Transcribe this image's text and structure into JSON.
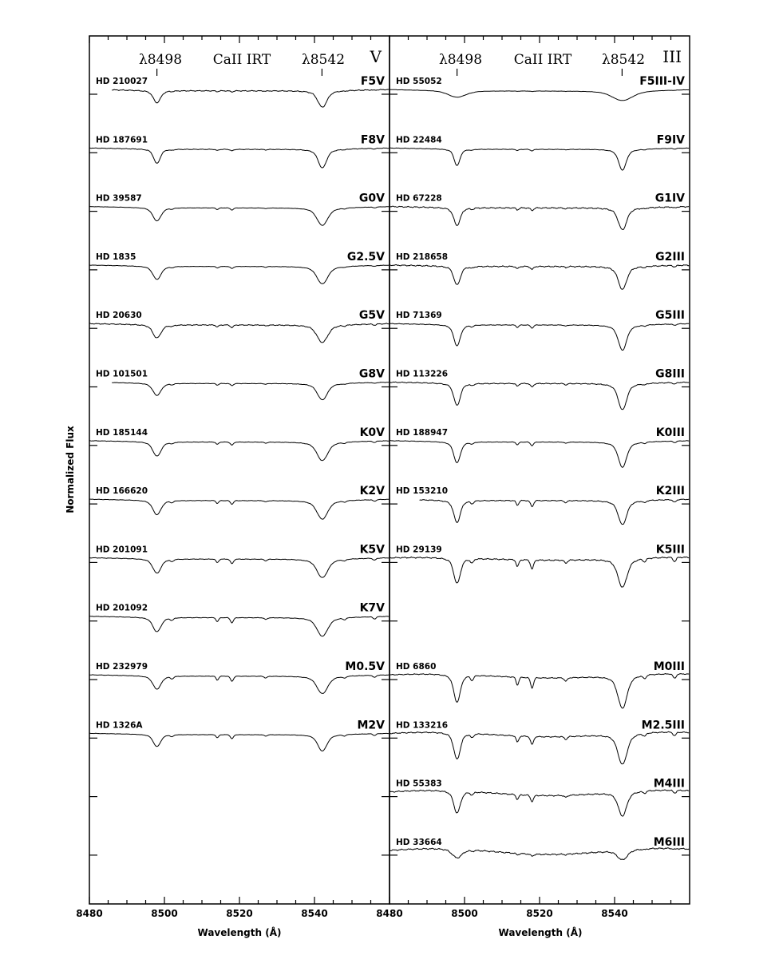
{
  "chart_data": [
    {
      "type": "line",
      "panel": "V",
      "title": "CaII IRT",
      "class_label": "V",
      "line_markers": [
        "λ8498",
        "λ8542"
      ],
      "line_marker_wavelengths": [
        8498,
        8542
      ],
      "xlabel": "Wavelength (Å)",
      "ylabel": "Normalized Flux",
      "xlim": [
        8480,
        8560
      ],
      "xticks": [
        8480,
        8500,
        8520,
        8540
      ],
      "grid": false,
      "series": [
        {
          "star": "HD 210027",
          "sptype": "F5V",
          "xstart": 8486,
          "xend": 8560,
          "noise": 0.6,
          "d8498": 0.55,
          "w8498": 0.9,
          "d8542": 0.75,
          "w8542": 1.1,
          "weak": 0.1,
          "tio": 0
        },
        {
          "star": "HD 187691",
          "sptype": "F8V",
          "xstart": 8480,
          "xend": 8560,
          "noise": 0.4,
          "d8498": 0.65,
          "w8498": 0.8,
          "d8542": 0.85,
          "w8542": 1.0,
          "weak": 0.15,
          "tio": 0
        },
        {
          "star": "HD 39587",
          "sptype": "G0V",
          "xstart": 8480,
          "xend": 8560,
          "noise": 0.2,
          "d8498": 0.6,
          "w8498": 1.0,
          "d8542": 0.8,
          "w8542": 1.3,
          "weak": 0.2,
          "tio": 0
        },
        {
          "star": "HD 1835",
          "sptype": "G2.5V",
          "xstart": 8480,
          "xend": 8560,
          "noise": 0.25,
          "d8498": 0.6,
          "w8498": 1.0,
          "d8542": 0.8,
          "w8542": 1.3,
          "weak": 0.2,
          "tio": 0
        },
        {
          "star": "HD 20630",
          "sptype": "G5V",
          "xstart": 8480,
          "xend": 8560,
          "noise": 0.6,
          "d8498": 0.6,
          "w8498": 1.0,
          "d8542": 0.8,
          "w8542": 1.3,
          "weak": 0.25,
          "tio": 0
        },
        {
          "star": "HD 101501",
          "sptype": "G8V",
          "xstart": 8486,
          "xend": 8560,
          "noise": 0.3,
          "d8498": 0.55,
          "w8498": 1.0,
          "d8542": 0.75,
          "w8542": 1.2,
          "weak": 0.2,
          "tio": 0
        },
        {
          "star": "HD 185144",
          "sptype": "K0V",
          "xstart": 8480,
          "xend": 8560,
          "noise": 0.3,
          "d8498": 0.65,
          "w8498": 1.0,
          "d8542": 0.85,
          "w8542": 1.3,
          "weak": 0.3,
          "tio": 0
        },
        {
          "star": "HD 166620",
          "sptype": "K2V",
          "xstart": 8480,
          "xend": 8560,
          "noise": 0.3,
          "d8498": 0.65,
          "w8498": 1.0,
          "d8542": 0.85,
          "w8542": 1.3,
          "weak": 0.35,
          "tio": 0
        },
        {
          "star": "HD 201091",
          "sptype": "K5V",
          "xstart": 8480,
          "xend": 8560,
          "noise": 0.35,
          "d8498": 0.65,
          "w8498": 1.0,
          "d8542": 0.85,
          "w8542": 1.3,
          "weak": 0.45,
          "tio": 0
        },
        {
          "star": "HD 201092",
          "sptype": "K7V",
          "xstart": 8480,
          "xend": 8560,
          "noise": 0.3,
          "d8498": 0.65,
          "w8498": 1.0,
          "d8542": 0.85,
          "w8542": 1.3,
          "weak": 0.5,
          "tio": 0
        },
        {
          "star": "HD 232979",
          "sptype": "M0.5V",
          "xstart": 8480,
          "xend": 8560,
          "noise": 0.3,
          "d8498": 0.6,
          "w8498": 1.0,
          "d8542": 0.8,
          "w8542": 1.3,
          "weak": 0.5,
          "tio": 0
        },
        {
          "star": "HD 1326A",
          "sptype": "M2V",
          "xstart": 8480,
          "xend": 8560,
          "noise": 0.2,
          "d8498": 0.55,
          "w8498": 0.9,
          "d8542": 0.75,
          "w8542": 1.1,
          "weak": 0.4,
          "tio": 0
        }
      ]
    },
    {
      "type": "line",
      "panel": "III",
      "title": "CaII IRT",
      "class_label": "III",
      "line_markers": [
        "λ8498",
        "λ8542"
      ],
      "line_marker_wavelengths": [
        8498,
        8542
      ],
      "xlabel": "Wavelength (Å)",
      "xlim": [
        8480,
        8560
      ],
      "xticks": [
        8480,
        8500,
        8520,
        8540
      ],
      "grid": false,
      "series": [
        {
          "star": "HD 55052",
          "sptype": "F5III-IV",
          "xstart": 8480,
          "xend": 8560,
          "noise": 0.15,
          "d8498": 0.3,
          "w8498": 2.2,
          "d8542": 0.45,
          "w8542": 2.5,
          "weak": 0.05,
          "tio": 0
        },
        {
          "star": "HD 22484",
          "sptype": "F9IV",
          "xstart": 8480,
          "xend": 8560,
          "noise": 0.3,
          "d8498": 0.75,
          "w8498": 0.7,
          "d8542": 0.95,
          "w8542": 0.9,
          "weak": 0.15,
          "tio": 0
        },
        {
          "star": "HD 67228",
          "sptype": "G1IV",
          "xstart": 8480,
          "xend": 8560,
          "noise": 0.8,
          "d8498": 0.8,
          "w8498": 0.8,
          "d8542": 1.0,
          "w8542": 1.0,
          "weak": 0.25,
          "tio": 0
        },
        {
          "star": "HD 218658",
          "sptype": "G2III",
          "xstart": 8480,
          "xend": 8560,
          "noise": 0.8,
          "d8498": 0.85,
          "w8498": 0.8,
          "d8542": 1.05,
          "w8542": 1.0,
          "weak": 0.3,
          "tio": 0
        },
        {
          "star": "HD 71369",
          "sptype": "G5III",
          "xstart": 8480,
          "xend": 8560,
          "noise": 0.4,
          "d8498": 0.95,
          "w8498": 0.8,
          "d8542": 1.15,
          "w8542": 1.0,
          "weak": 0.3,
          "tio": 0
        },
        {
          "star": "HD 113226",
          "sptype": "G8III",
          "xstart": 8480,
          "xend": 8560,
          "noise": 0.6,
          "d8498": 1.0,
          "w8498": 0.8,
          "d8542": 1.2,
          "w8542": 1.0,
          "weak": 0.35,
          "tio": 0
        },
        {
          "star": "HD 188947",
          "sptype": "K0III",
          "xstart": 8480,
          "xend": 8560,
          "noise": 0.3,
          "d8498": 0.95,
          "w8498": 0.8,
          "d8542": 1.15,
          "w8542": 1.0,
          "weak": 0.35,
          "tio": 0
        },
        {
          "star": "HD 153210",
          "sptype": "K2III",
          "xstart": 8488,
          "xend": 8560,
          "noise": 0.6,
          "d8498": 1.0,
          "w8498": 0.8,
          "d8542": 1.1,
          "w8542": 1.0,
          "weak": 0.6,
          "tio": 0
        },
        {
          "star": "HD 29139",
          "sptype": "K5III",
          "xstart": 8480,
          "xend": 8560,
          "noise": 0.8,
          "d8498": 1.15,
          "w8498": 0.8,
          "d8542": 1.3,
          "w8542": 1.1,
          "weak": 0.9,
          "tio": 0.3
        },
        {
          "star": "HD 6860",
          "sptype": "M0III",
          "xstart": 8480,
          "xend": 8560,
          "noise": 0.6,
          "d8498": 1.25,
          "w8498": 0.8,
          "d8542": 1.5,
          "w8542": 1.1,
          "weak": 1.0,
          "tio": 0.5
        },
        {
          "star": "HD 133216",
          "sptype": "M2.5III",
          "xstart": 8480,
          "xend": 8560,
          "noise": 0.7,
          "d8498": 1.2,
          "w8498": 0.8,
          "d8542": 1.4,
          "w8542": 1.1,
          "weak": 0.8,
          "tio": 0.6
        },
        {
          "star": "HD 55383",
          "sptype": "M4III",
          "xstart": 8480,
          "xend": 8560,
          "noise": 0.8,
          "d8498": 1.0,
          "w8498": 0.8,
          "d8542": 1.1,
          "w8542": 1.0,
          "weak": 0.6,
          "tio": 0.7
        },
        {
          "star": "HD 33664",
          "sptype": "M6III",
          "xstart": 8480,
          "xend": 8560,
          "noise": 0.9,
          "d8498": 0.4,
          "w8498": 1.2,
          "d8542": 0.45,
          "w8542": 1.2,
          "weak": 0.2,
          "tio": 0.8
        }
      ]
    }
  ]
}
